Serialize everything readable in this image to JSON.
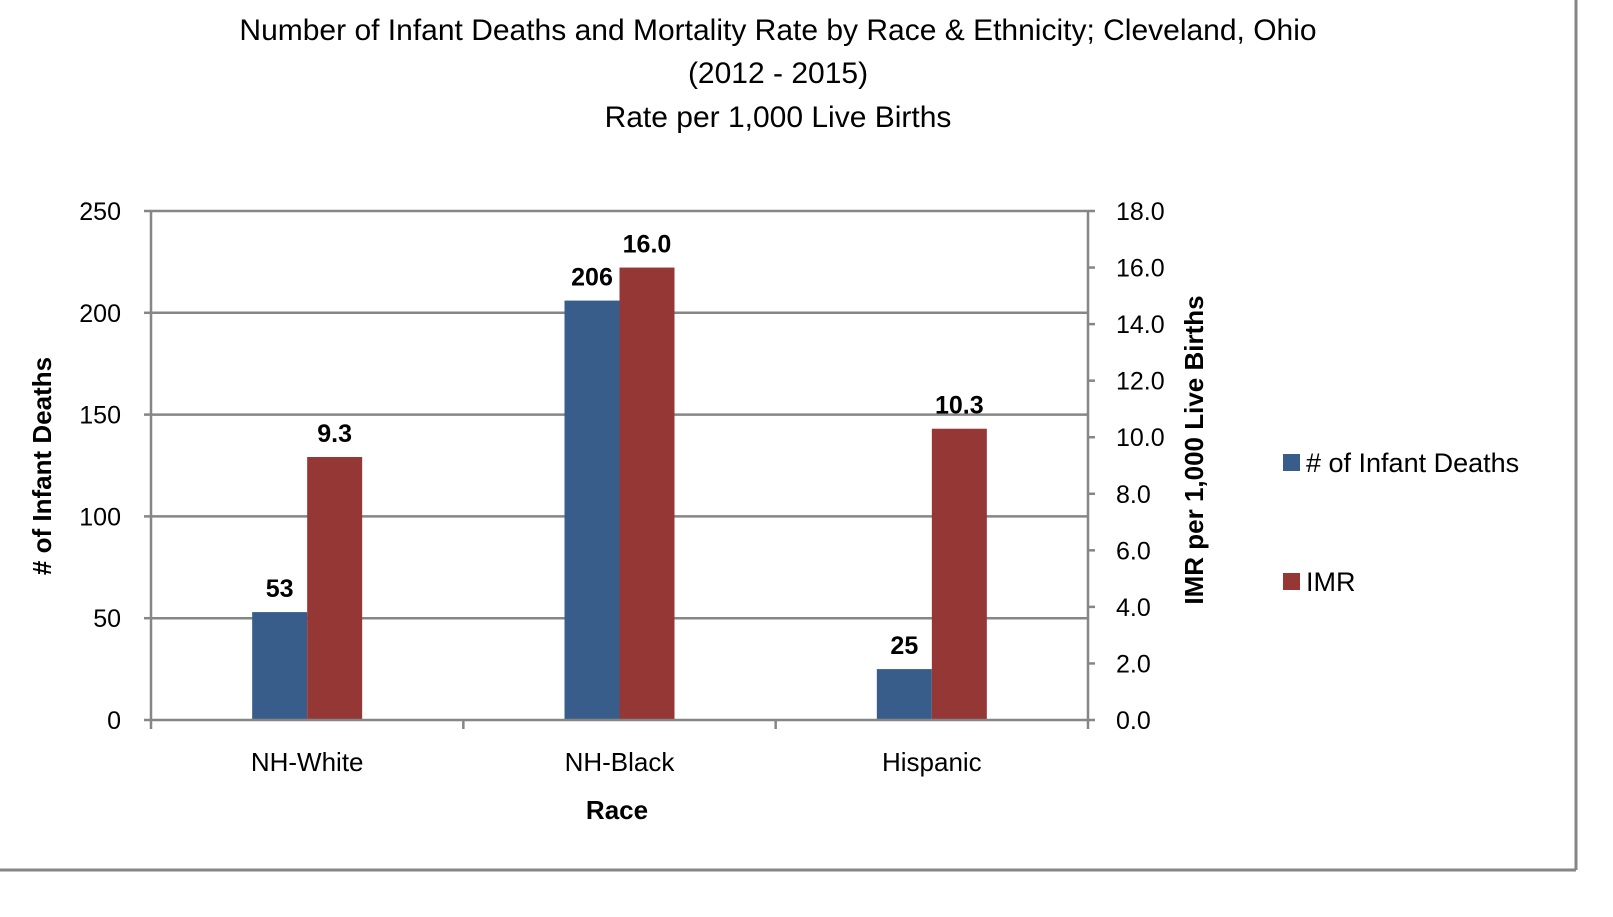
{
  "chart_data": {
    "type": "bar",
    "title_lines": [
      "Number of Infant Deaths and Mortality Rate by Race & Ethnicity; Cleveland, Ohio",
      "(2012 - 2015)",
      "Rate per 1,000 Live Births"
    ],
    "categories": [
      "NH-White",
      "NH-Black",
      "Hispanic"
    ],
    "xlabel": "Race",
    "ylabel": "# of Infant Deaths",
    "y2label": "IMR per 1,000 Live Births",
    "ylim": [
      0,
      250
    ],
    "y2lim": [
      0,
      18
    ],
    "yticks": [
      "0",
      "50",
      "100",
      "150",
      "200",
      "250"
    ],
    "y2ticks": [
      "0.0",
      "2.0",
      "4.0",
      "6.0",
      "8.0",
      "10.0",
      "12.0",
      "14.0",
      "16.0",
      "18.0"
    ],
    "grid": true,
    "legend_position": "right",
    "series": [
      {
        "name": "# of Infant Deaths",
        "axis": "left",
        "color": "#385D8A",
        "values": [
          53,
          206,
          25
        ],
        "labels": [
          "53",
          "206",
          "25"
        ]
      },
      {
        "name": "IMR",
        "axis": "right",
        "color": "#953735",
        "values": [
          9.3,
          16.0,
          10.3
        ],
        "labels": [
          "9.3",
          "16.0",
          "10.3"
        ]
      }
    ]
  }
}
